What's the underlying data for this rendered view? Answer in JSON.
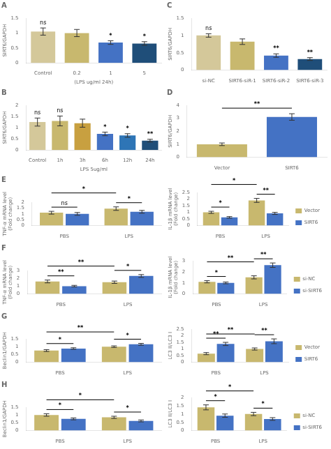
{
  "chart_data": [
    {
      "type": "bar",
      "title": "A",
      "categories": [
        "Control",
        "0.2",
        "1",
        "5"
      ],
      "values": [
        1.05,
        1.0,
        0.68,
        0.65
      ],
      "errors": [
        0.12,
        0.12,
        0.06,
        0.06
      ],
      "colors": [
        "#d4c89a",
        "#c8b86e",
        "#4472c4",
        "#1f4e79"
      ],
      "ylabel": "SIRT6/GAPDH",
      "xlabel": "(LPS ug/ml 24h)",
      "ylim": [
        0,
        1.5
      ],
      "yticks": [
        0,
        0.5,
        1,
        1.5
      ],
      "grid": false,
      "annotations": [
        {
          "text": "ns",
          "category": "Control"
        },
        {
          "text": "*",
          "category": "1"
        },
        {
          "text": "*",
          "category": "5"
        }
      ]
    },
    {
      "type": "bar",
      "title": "C",
      "categories": [
        "si-NC",
        "SIRT6-siR-1",
        "SIRT6-siR-2",
        "SIRT6-siR-3"
      ],
      "values": [
        1.0,
        0.82,
        0.42,
        0.32
      ],
      "errors": [
        0.05,
        0.08,
        0.05,
        0.04
      ],
      "colors": [
        "#d4c89a",
        "#c8b86e",
        "#4472c4",
        "#1f4e79"
      ],
      "ylabel": "SIRT6/GAPDH",
      "ylim": [
        0,
        1.5
      ],
      "yticks": [
        0,
        0.5,
        1,
        1.5
      ],
      "grid": false,
      "annotations": [
        {
          "text": "ns",
          "category": "si-NC"
        },
        {
          "text": "**",
          "category": "SIRT6-siR-2"
        },
        {
          "text": "**",
          "category": "SIRT6-siR-3"
        }
      ]
    },
    {
      "type": "bar",
      "title": "B",
      "categories": [
        "Control",
        "1h",
        "3h",
        "6h",
        "12h",
        "24h"
      ],
      "values": [
        1.25,
        1.3,
        1.2,
        0.72,
        0.65,
        0.42
      ],
      "errors": [
        0.18,
        0.22,
        0.18,
        0.08,
        0.08,
        0.06
      ],
      "colors": [
        "#d4c89a",
        "#c8b86e",
        "#c8a040",
        "#4472c4",
        "#2e75b6",
        "#1f4e79"
      ],
      "ylabel": "SIRT6/GAPDH",
      "xlabel": "LPS 5ug/ml",
      "ylim": [
        0,
        2.0
      ],
      "yticks": [
        0,
        0.5,
        1,
        1.5,
        2
      ],
      "grid": false,
      "annotations": [
        {
          "text": "ns",
          "category": "Control"
        },
        {
          "text": "ns",
          "category": "1h"
        },
        {
          "text": "*",
          "category": "6h"
        },
        {
          "text": "*",
          "category": "12h"
        },
        {
          "text": "**",
          "category": "24h"
        }
      ]
    },
    {
      "type": "bar",
      "title": "D",
      "categories": [
        "Vector",
        "SIRT6"
      ],
      "values": [
        1.0,
        3.1
      ],
      "errors": [
        0.1,
        0.25
      ],
      "colors": [
        "#c8b86e",
        "#4472c4"
      ],
      "ylabel": "SIRT6/GAPDH",
      "ylim": [
        0,
        4
      ],
      "yticks": [
        0,
        1,
        2,
        3,
        4
      ],
      "grid": false,
      "annotations": [
        {
          "text": "**",
          "categories": [
            "Vector",
            "SIRT6"
          ]
        }
      ]
    },
    {
      "type": "bar",
      "title": "E",
      "categories": [
        "PBS",
        "LPS"
      ],
      "series": [
        {
          "name": "Vector",
          "color": "#c8b86e",
          "values": [
            1.1,
            1.45
          ],
          "errors": [
            0.12,
            0.15
          ]
        },
        {
          "name": "SIRT6",
          "color": "#4472c4",
          "values": [
            1.0,
            1.18
          ],
          "errors": [
            0.12,
            0.12
          ]
        }
      ],
      "ylabel": "TNF-α mRNA level\n(Fold change)",
      "ylim": [
        0,
        2.0
      ],
      "yticks": [
        0,
        0.5,
        1,
        1.5,
        2
      ],
      "grid": false,
      "annotations": [
        {
          "text": "ns",
          "category": "PBS"
        },
        {
          "text": "*",
          "category": "LPS"
        },
        {
          "text": "*",
          "categories": [
            "PBS",
            "LPS"
          ],
          "series": "Vector"
        }
      ]
    },
    {
      "type": "bar",
      "categories": [
        "PBS",
        "LPS"
      ],
      "series": [
        {
          "name": "Vector",
          "color": "#c8b86e",
          "values": [
            1.0,
            1.9
          ],
          "errors": [
            0.08,
            0.15
          ]
        },
        {
          "name": "SIRT6",
          "color": "#4472c4",
          "values": [
            0.62,
            0.92
          ],
          "errors": [
            0.06,
            0.08
          ]
        }
      ],
      "ylabel": "IL-1β mRNA level\n(Fold change)",
      "ylim": [
        0,
        2.5
      ],
      "yticks": [
        0,
        0.5,
        1,
        1.5,
        2,
        2.5
      ],
      "grid": false,
      "legend": "right",
      "annotations": [
        {
          "text": "*",
          "category": "PBS"
        },
        {
          "text": "**",
          "category": "LPS"
        },
        {
          "text": "*",
          "categories": [
            "PBS",
            "LPS"
          ],
          "series": "Vector"
        }
      ]
    },
    {
      "type": "bar",
      "title": "F",
      "categories": [
        "PBS",
        "LPS"
      ],
      "series": [
        {
          "name": "si-NC",
          "color": "#c8b86e",
          "values": [
            1.6,
            1.5
          ],
          "errors": [
            0.18,
            0.15
          ]
        },
        {
          "name": "si-SIRT6",
          "color": "#4472c4",
          "values": [
            1.0,
            2.3
          ],
          "errors": [
            0.1,
            0.18
          ]
        }
      ],
      "ylabel": "TNF-α mRNA level\n(Fold change)",
      "ylim": [
        0,
        3
      ],
      "yticks": [
        0,
        1,
        2,
        3
      ],
      "grid": false,
      "annotations": [
        {
          "text": "**",
          "category": "PBS"
        },
        {
          "text": "*",
          "category": "LPS"
        },
        {
          "text": "**",
          "categories": [
            "PBS",
            "LPS"
          ],
          "series": "si-NC"
        }
      ]
    },
    {
      "type": "bar",
      "categories": [
        "PBS",
        "LPS"
      ],
      "series": [
        {
          "name": "si-NC",
          "color": "#c8b86e",
          "values": [
            1.1,
            1.5
          ],
          "errors": [
            0.1,
            0.14
          ]
        },
        {
          "name": "si-SIRT6",
          "color": "#4472c4",
          "values": [
            1.0,
            2.6
          ],
          "errors": [
            0.08,
            0.2
          ]
        }
      ],
      "ylabel": "IL-1β mRNA level\n(Fold change)",
      "ylim": [
        0,
        3
      ],
      "yticks": [
        0,
        1,
        2,
        3
      ],
      "grid": false,
      "legend": "right",
      "annotations": [
        {
          "text": "*",
          "category": "PBS"
        },
        {
          "text": "**",
          "category": "LPS"
        },
        {
          "text": "**",
          "categories": [
            "PBS",
            "LPS"
          ],
          "series": "si-NC"
        }
      ]
    },
    {
      "type": "bar",
      "title": "G",
      "categories": [
        "PBS",
        "LPS"
      ],
      "series": [
        {
          "name": "Vector",
          "color": "#c8b86e",
          "values": [
            0.75,
            1.0
          ],
          "errors": [
            0.06,
            0.05
          ]
        },
        {
          "name": "SIRT6",
          "color": "#4472c4",
          "values": [
            0.88,
            1.15
          ],
          "errors": [
            0.05,
            0.06
          ]
        }
      ],
      "ylabel": "Beclin1/GAPDH",
      "ylim": [
        0,
        1.5
      ],
      "yticks": [
        0,
        0.5,
        1,
        1.5
      ],
      "grid": false,
      "annotations": [
        {
          "text": "*",
          "category": "PBS"
        },
        {
          "text": "*",
          "category": "LPS"
        },
        {
          "text": "**",
          "categories": [
            "PBS",
            "LPS"
          ],
          "series": "Vector"
        }
      ]
    },
    {
      "type": "bar",
      "categories": [
        "PBS",
        "LPS"
      ],
      "series": [
        {
          "name": "Vector",
          "color": "#c8b86e",
          "values": [
            0.65,
            1.0
          ],
          "errors": [
            0.08,
            0.08
          ]
        },
        {
          "name": "SIRT6",
          "color": "#4472c4",
          "values": [
            1.38,
            1.58
          ],
          "errors": [
            0.12,
            0.18
          ]
        }
      ],
      "ylabel": "LC3 II/LC3 I",
      "ylim": [
        0,
        2.5
      ],
      "yticks": [
        0,
        0.5,
        1,
        1.5,
        2,
        2.5
      ],
      "grid": false,
      "legend": "right",
      "annotations": [
        {
          "text": "**",
          "category": "PBS"
        },
        {
          "text": "**",
          "category": "LPS"
        },
        {
          "text": "**",
          "categories": [
            "PBS",
            "LPS"
          ],
          "series": "Vector"
        }
      ]
    },
    {
      "type": "bar",
      "title": "H",
      "categories": [
        "PBS",
        "LPS"
      ],
      "series": [
        {
          "name": "si-NC",
          "color": "#c8b86e",
          "values": [
            1.0,
            0.85
          ],
          "errors": [
            0.08,
            0.07
          ]
        },
        {
          "name": "si-SIRT6",
          "color": "#4472c4",
          "values": [
            0.75,
            0.62
          ],
          "errors": [
            0.06,
            0.06
          ]
        }
      ],
      "ylabel": "Beclin1/GAPDH",
      "ylim": [
        0,
        1.5
      ],
      "yticks": [
        0,
        0.5,
        1,
        1.5
      ],
      "grid": false,
      "annotations": [
        {
          "text": "*",
          "category": "PBS"
        },
        {
          "text": "*",
          "category": "LPS"
        },
        {
          "text": "*",
          "categories": [
            "PBS",
            "LPS"
          ],
          "series": "si-NC"
        }
      ]
    },
    {
      "type": "bar",
      "categories": [
        "PBS",
        "LPS"
      ],
      "series": [
        {
          "name": "si-NC",
          "color": "#c8b86e",
          "values": [
            1.4,
            1.0
          ],
          "errors": [
            0.15,
            0.1
          ]
        },
        {
          "name": "si-SIRT6",
          "color": "#4472c4",
          "values": [
            0.9,
            0.7
          ],
          "errors": [
            0.1,
            0.08
          ]
        }
      ],
      "ylabel": "LC3 II/LC3 I",
      "ylim": [
        0,
        2.0
      ],
      "yticks": [
        0,
        0.5,
        1,
        1.5,
        2
      ],
      "grid": false,
      "legend": "right",
      "annotations": [
        {
          "text": "*",
          "category": "PBS"
        },
        {
          "text": "*",
          "category": "LPS"
        },
        {
          "text": "*",
          "categories": [
            "PBS",
            "LPS"
          ],
          "series": "si-NC"
        }
      ]
    }
  ]
}
